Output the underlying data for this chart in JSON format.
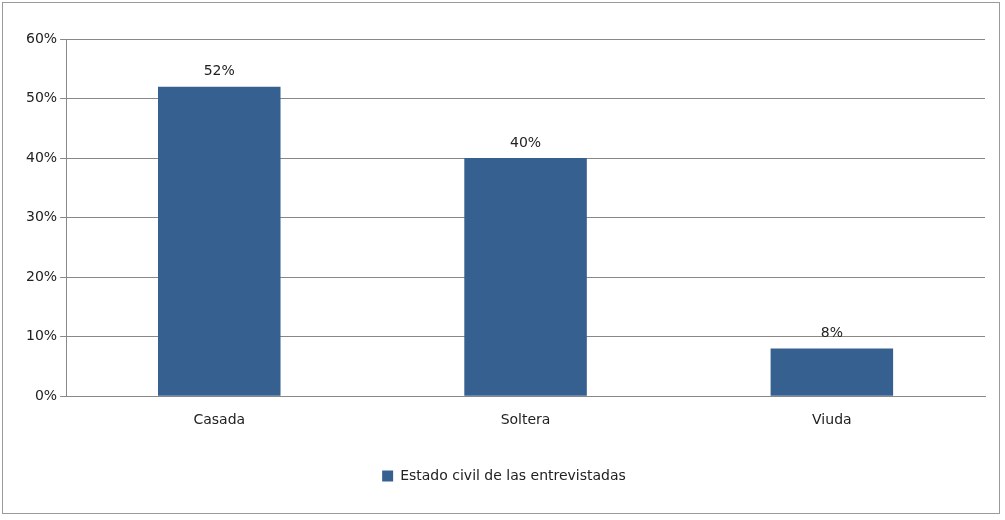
{
  "chart_data": {
    "type": "bar",
    "categories": [
      "Casada",
      "Soltera",
      "Viuda"
    ],
    "series": [
      {
        "name": "Estado civil de las entrevistadas",
        "color": "#35608f",
        "values": [
          52,
          40,
          8
        ],
        "value_labels": [
          "52%",
          "40%",
          "8%"
        ]
      }
    ],
    "ylim": [
      0,
      60
    ],
    "yticks": [
      {
        "value": 0,
        "label": "0%"
      },
      {
        "value": 10,
        "label": "10%"
      },
      {
        "value": 20,
        "label": "20%"
      },
      {
        "value": 30,
        "label": "30%"
      },
      {
        "value": 40,
        "label": "40%"
      },
      {
        "value": 50,
        "label": "50%"
      },
      {
        "value": 60,
        "label": "60%"
      }
    ],
    "grid": "y",
    "legend": "bottom"
  }
}
